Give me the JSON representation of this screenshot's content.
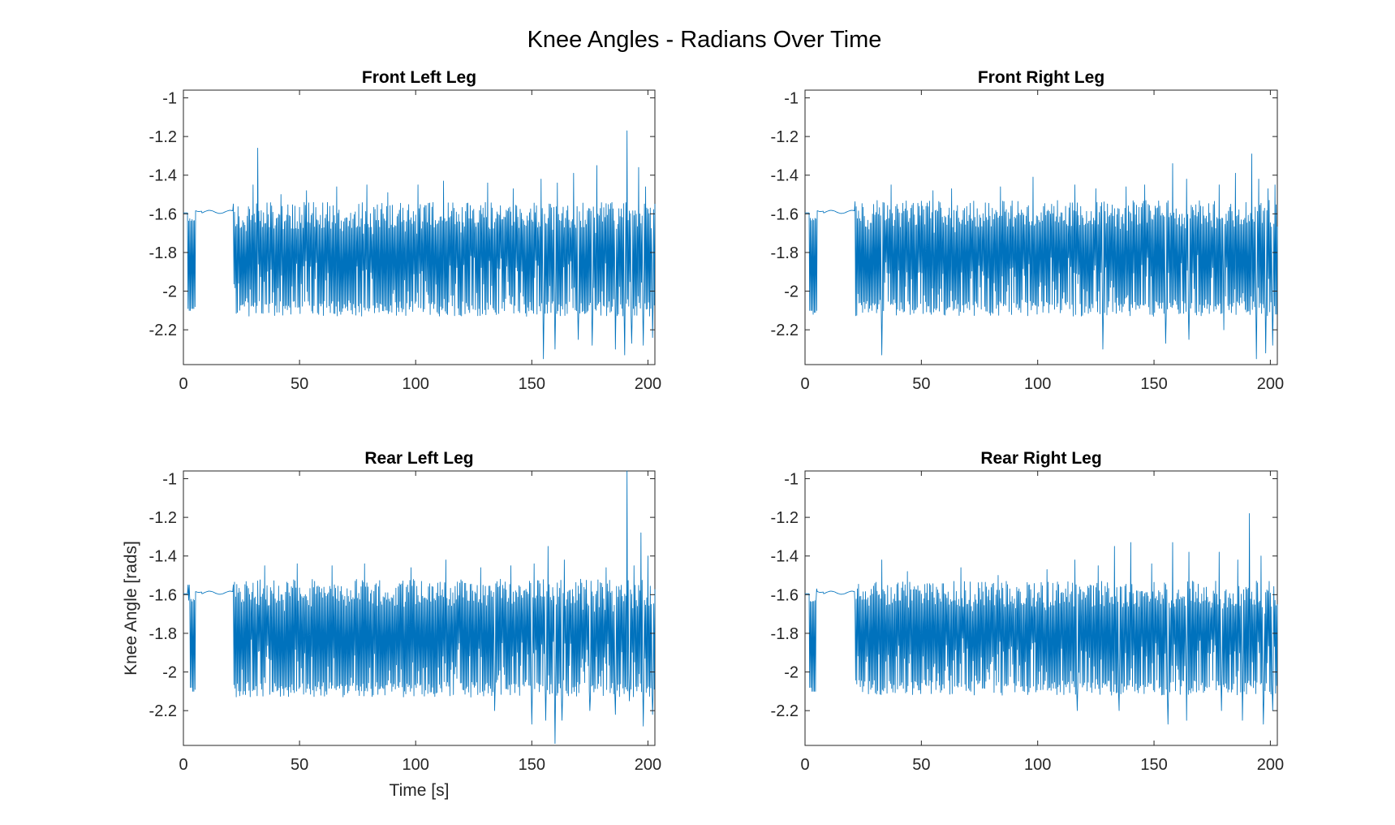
{
  "figure": {
    "title": "Knee Angles - Radians Over Time",
    "line_color": "#0072BD"
  },
  "chart_data": [
    {
      "type": "line",
      "title": "Front Left Leg",
      "xlabel": "",
      "ylabel": "",
      "xlim": [
        0,
        203
      ],
      "ylim": [
        -2.38,
        -0.96
      ],
      "xticks": [
        0,
        50,
        100,
        150,
        200
      ],
      "xtick_labels": [
        "0",
        "50",
        "100",
        "150",
        "200"
      ],
      "yticks": [
        -1,
        -1.2,
        -1.4,
        -1.6,
        -1.8,
        -2,
        -2.2
      ],
      "ytick_labels": [
        "-1",
        "-1.2",
        "-1.4",
        "-1.6",
        "-1.8",
        "-2",
        "-2.2"
      ],
      "grid": false,
      "series": [
        {
          "color": "#0072BD",
          "sample_interval_s": 0.25,
          "values": []
        }
      ],
      "envelope": {
        "rest_value": -1.59,
        "initial_dip": [
          [
            2.0,
            -2.09
          ],
          [
            2.8,
            -2.1
          ],
          [
            4.0,
            -2.09
          ],
          [
            5.0,
            -2.08
          ]
        ],
        "gait_start_s": 21.5,
        "typical_high": -1.58,
        "typical_low": -2.11,
        "peaks": [
          [
            32,
            -1.26
          ],
          [
            30,
            -1.45
          ],
          [
            42,
            -1.5
          ],
          [
            53,
            -1.48
          ],
          [
            66,
            -1.46
          ],
          [
            79,
            -1.45
          ],
          [
            88,
            -1.49
          ],
          [
            101,
            -1.45
          ],
          [
            112,
            -1.43
          ],
          [
            131,
            -1.44
          ],
          [
            142,
            -1.47
          ],
          [
            154,
            -1.42
          ],
          [
            161,
            -1.44
          ],
          [
            168,
            -1.39
          ],
          [
            178,
            -1.35
          ],
          [
            186,
            -1.38
          ],
          [
            191,
            -1.17
          ],
          [
            196,
            -1.36
          ],
          [
            199,
            -1.46
          ],
          [
            202,
            -1.5
          ]
        ],
        "troughs": [
          [
            155,
            -2.35
          ],
          [
            160,
            -2.3
          ],
          [
            170,
            -2.25
          ],
          [
            176,
            -2.28
          ],
          [
            186,
            -2.3
          ],
          [
            190,
            -2.33
          ],
          [
            193,
            -2.27
          ],
          [
            198,
            -2.28
          ],
          [
            202,
            -2.24
          ]
        ]
      }
    },
    {
      "type": "line",
      "title": "Front Right Leg",
      "xlabel": "",
      "ylabel": "",
      "xlim": [
        0,
        203
      ],
      "ylim": [
        -2.38,
        -0.96
      ],
      "xticks": [
        0,
        50,
        100,
        150,
        200
      ],
      "xtick_labels": [
        "0",
        "50",
        "100",
        "150",
        "200"
      ],
      "yticks": [
        -1,
        -1.2,
        -1.4,
        -1.6,
        -1.8,
        -2,
        -2.2
      ],
      "ytick_labels": [
        "-1",
        "-1.2",
        "-1.4",
        "-1.6",
        "-1.8",
        "-2",
        "-2.2"
      ],
      "grid": false,
      "series": [
        {
          "color": "#0072BD",
          "sample_interval_s": 0.25,
          "values": []
        }
      ],
      "envelope": {
        "rest_value": -1.59,
        "initial_dip": [
          [
            2.5,
            -2.1
          ],
          [
            3.5,
            -2.12
          ],
          [
            4.3,
            -2.11
          ],
          [
            5.0,
            -2.1
          ]
        ],
        "gait_start_s": 21.5,
        "typical_high": -1.57,
        "typical_low": -2.11,
        "peaks": [
          [
            37,
            -1.45
          ],
          [
            55,
            -1.48
          ],
          [
            63,
            -1.47
          ],
          [
            84,
            -1.46
          ],
          [
            98,
            -1.41
          ],
          [
            116,
            -1.45
          ],
          [
            125,
            -1.47
          ],
          [
            138,
            -1.46
          ],
          [
            146,
            -1.45
          ],
          [
            158,
            -1.34
          ],
          [
            164,
            -1.42
          ],
          [
            178,
            -1.45
          ],
          [
            185,
            -1.39
          ],
          [
            192,
            -1.29
          ],
          [
            195,
            -1.42
          ],
          [
            199,
            -1.47
          ],
          [
            202,
            -1.45
          ]
        ],
        "troughs": [
          [
            33,
            -2.33
          ],
          [
            128,
            -2.3
          ],
          [
            155,
            -2.27
          ],
          [
            165,
            -2.25
          ],
          [
            180,
            -2.2
          ],
          [
            194,
            -2.35
          ],
          [
            198,
            -2.32
          ],
          [
            201,
            -2.28
          ]
        ]
      }
    },
    {
      "type": "line",
      "title": "Rear Left Leg",
      "xlabel": "Time [s]",
      "ylabel": "Knee Angle [rads]",
      "xlim": [
        0,
        203
      ],
      "ylim": [
        -2.38,
        -0.96
      ],
      "xticks": [
        0,
        50,
        100,
        150,
        200
      ],
      "xtick_labels": [
        "0",
        "50",
        "100",
        "150",
        "200"
      ],
      "yticks": [
        -1,
        -1.2,
        -1.4,
        -1.6,
        -1.8,
        -2,
        -2.2
      ],
      "ytick_labels": [
        "-1",
        "-1.2",
        "-1.4",
        "-1.6",
        "-1.8",
        "-2",
        "-2.2"
      ],
      "grid": false,
      "series": [
        {
          "color": "#0072BD",
          "sample_interval_s": 0.25,
          "values": []
        }
      ],
      "envelope": {
        "rest_value": -1.59,
        "initial_dip": [
          [
            2.2,
            -1.55
          ],
          [
            3.0,
            -2.08
          ],
          [
            4.0,
            -2.1
          ],
          [
            5.0,
            -2.09
          ]
        ],
        "gait_start_s": 21.5,
        "typical_high": -1.56,
        "typical_low": -2.11,
        "peaks": [
          [
            35,
            -1.45
          ],
          [
            49,
            -1.44
          ],
          [
            64,
            -1.45
          ],
          [
            78,
            -1.44
          ],
          [
            98,
            -1.46
          ],
          [
            113,
            -1.42
          ],
          [
            128,
            -1.46
          ],
          [
            141,
            -1.45
          ],
          [
            151,
            -1.44
          ],
          [
            157,
            -1.35
          ],
          [
            164,
            -1.42
          ],
          [
            175,
            -1.43
          ],
          [
            182,
            -1.46
          ],
          [
            191,
            -0.96
          ],
          [
            194,
            -1.45
          ],
          [
            197,
            -1.28
          ],
          [
            200,
            -1.4
          ],
          [
            202,
            -1.45
          ]
        ],
        "troughs": [
          [
            134,
            -2.2
          ],
          [
            150,
            -2.27
          ],
          [
            156,
            -2.25
          ],
          [
            160,
            -2.37
          ],
          [
            163,
            -2.25
          ],
          [
            175,
            -2.2
          ],
          [
            186,
            -2.22
          ],
          [
            192,
            -2.15
          ],
          [
            198,
            -2.28
          ],
          [
            202,
            -2.22
          ]
        ]
      }
    },
    {
      "type": "line",
      "title": "Rear Right Leg",
      "xlabel": "",
      "ylabel": "",
      "xlim": [
        0,
        203
      ],
      "ylim": [
        -2.38,
        -0.96
      ],
      "xticks": [
        0,
        50,
        100,
        150,
        200
      ],
      "xtick_labels": [
        "0",
        "50",
        "100",
        "150",
        "200"
      ],
      "yticks": [
        -1,
        -1.2,
        -1.4,
        -1.6,
        -1.8,
        -2,
        -2.2
      ],
      "ytick_labels": [
        "-1",
        "-1.2",
        "-1.4",
        "-1.6",
        "-1.8",
        "-2",
        "-2.2"
      ],
      "grid": false,
      "series": [
        {
          "color": "#0072BD",
          "sample_interval_s": 0.25,
          "values": []
        }
      ],
      "envelope": {
        "rest_value": -1.59,
        "initial_dip": [
          [
            2.5,
            -2.08
          ],
          [
            3.4,
            -2.1
          ],
          [
            4.4,
            -2.1
          ],
          [
            5.0,
            -1.57
          ],
          [
            6.0,
            -1.55
          ]
        ],
        "gait_start_s": 21.5,
        "typical_high": -1.57,
        "typical_low": -2.1,
        "peaks": [
          [
            33,
            -1.42
          ],
          [
            44,
            -1.48
          ],
          [
            67,
            -1.46
          ],
          [
            83,
            -1.5
          ],
          [
            104,
            -1.47
          ],
          [
            116,
            -1.42
          ],
          [
            126,
            -1.45
          ],
          [
            133,
            -1.35
          ],
          [
            140,
            -1.33
          ],
          [
            149,
            -1.44
          ],
          [
            158,
            -1.33
          ],
          [
            165,
            -1.38
          ],
          [
            178,
            -1.38
          ],
          [
            186,
            -1.42
          ],
          [
            191,
            -1.18
          ],
          [
            196,
            -1.4
          ],
          [
            201,
            -1.44
          ]
        ],
        "troughs": [
          [
            117,
            -2.2
          ],
          [
            135,
            -2.2
          ],
          [
            156,
            -2.27
          ],
          [
            164,
            -2.25
          ],
          [
            179,
            -2.2
          ],
          [
            188,
            -2.25
          ],
          [
            197,
            -2.27
          ],
          [
            201,
            -2.2
          ]
        ]
      }
    }
  ]
}
